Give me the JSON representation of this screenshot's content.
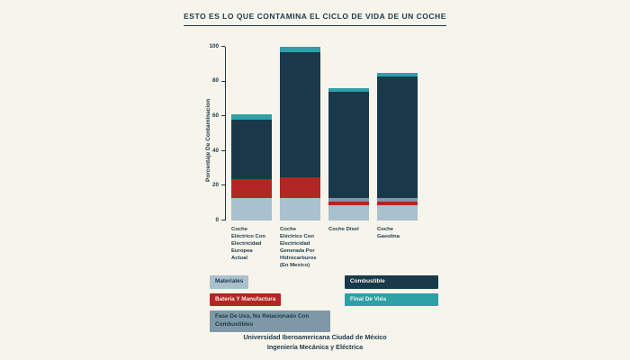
{
  "page": {
    "title": "ESTO ES LO QUE CONTAMINA EL CICLO DE VIDA DE UN COCHE",
    "footer_line1": "Universidad Iberoamericana Ciudad de México",
    "footer_line2": "Ingeniería Mecánica y Eléctrica"
  },
  "colors": {
    "background": "#f7f4eb",
    "ink": "#1b3a4c",
    "materiales": "#a9c0cd",
    "bateria_y_manufactura": "#b22623",
    "fase_de_uso": "#7f98a7",
    "combustible": "#19394a",
    "final_de_vida": "#2da0a8"
  },
  "chart_data": {
    "type": "bar",
    "stacked": true,
    "title": "ESTO ES LO QUE CONTAMINA EL CICLO DE VIDA DE UN COCHE",
    "xlabel": "",
    "ylabel": "Porcentaje De Contaminacion",
    "ylim": [
      0,
      100
    ],
    "yticks": [
      0,
      20,
      40,
      60,
      80,
      100
    ],
    "grid": false,
    "legend_position": "bottom",
    "categories": [
      "Coche Eléctrico Con Electricidad Europea Actual",
      "Coche Eléctrico Con Electricidad Generada Por Hidrocarburos (En Mexico)",
      "Coche Disel",
      "Coche Gasolina"
    ],
    "category_labels": [
      "Coche\nEléctrico Con\nElectricidad\nEuropea\nActual",
      "Coche\nEléctrico Con\nElectricidad\nGenerada Por\nHidrocarburos\n(En Mexico)",
      "Coche Disel",
      "Coche\nGasolina"
    ],
    "totals": [
      61,
      100,
      76,
      85
    ],
    "series": [
      {
        "name": "Materiales",
        "color": "#a9c0cd",
        "values": [
          13,
          13,
          9,
          9
        ]
      },
      {
        "name": "Bateria Y Manufactura",
        "color": "#b22623",
        "values": [
          11,
          12,
          2,
          2
        ]
      },
      {
        "name": "Fase De Uso, No Relacionado Con Combustibles",
        "color": "#7f98a7",
        "values": [
          0,
          0,
          2,
          2
        ]
      },
      {
        "name": "Combustible",
        "color": "#19394a",
        "values": [
          34,
          72,
          61,
          70
        ]
      },
      {
        "name": "Final De Vida",
        "color": "#2da0a8",
        "values": [
          3,
          3,
          2,
          2
        ]
      }
    ]
  },
  "legend": {
    "columns": [
      [
        {
          "label": "Materiales",
          "bg": "#a9c0cd",
          "fg": "#1b3a4c",
          "style": ""
        },
        {
          "label": "Bateria Y Manufactura",
          "bg": "#b22623",
          "fg": "#f5f1e8",
          "style": ""
        },
        {
          "label": "Fase De Uso, No Relacionado Con Combustibles",
          "bg": "#7f98a7",
          "fg": "#1b3a4c",
          "style": "wide"
        }
      ],
      [
        {
          "label": "Combustible",
          "bg": "#19394a",
          "fg": "#f5f1e8",
          "style": "fixed"
        },
        {
          "label": "Final De Vida",
          "bg": "#2da0a8",
          "fg": "#f5f1e8",
          "style": "fixed"
        }
      ]
    ]
  }
}
